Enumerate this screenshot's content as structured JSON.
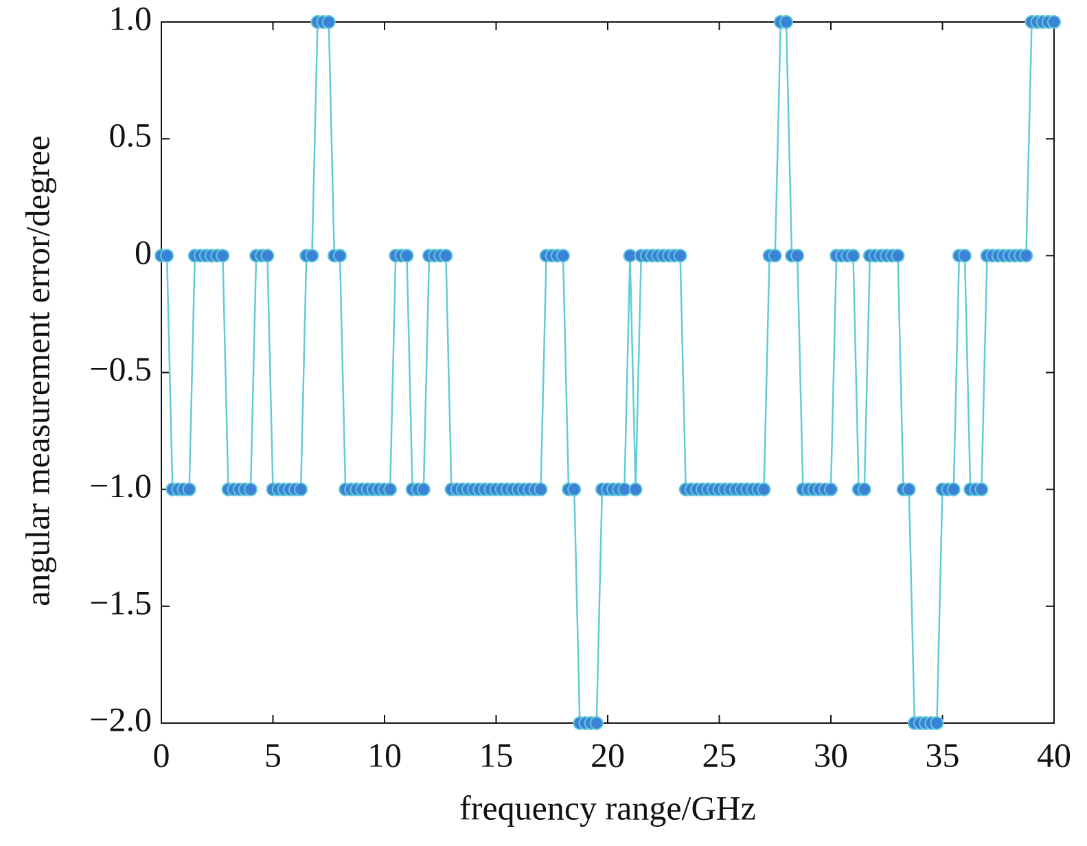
{
  "chart_data": {
    "type": "line",
    "x_label": "frequency range/GHz",
    "y_label": "angular measurement error/degree",
    "x": [
      0,
      0.25,
      0.5,
      0.75,
      1,
      1.25,
      1.5,
      1.75,
      2,
      2.25,
      2.5,
      2.75,
      3,
      3.25,
      3.5,
      3.75,
      4,
      4.25,
      4.5,
      4.75,
      5,
      5.25,
      5.5,
      5.75,
      6,
      6.25,
      6.5,
      6.75,
      7,
      7.25,
      7.5,
      7.75,
      8,
      8.25,
      8.5,
      8.75,
      9,
      9.25,
      9.5,
      9.75,
      10,
      10.25,
      10.5,
      10.75,
      11,
      11.25,
      11.5,
      11.75,
      12,
      12.25,
      12.5,
      12.75,
      13,
      13.25,
      13.5,
      13.75,
      14,
      14.25,
      14.5,
      14.75,
      15,
      15.25,
      15.5,
      15.75,
      16,
      16.25,
      16.5,
      16.75,
      17,
      17.25,
      17.5,
      17.75,
      18,
      18.25,
      18.5,
      18.75,
      19,
      19.25,
      19.5,
      19.75,
      20,
      20.25,
      20.5,
      20.75,
      21,
      21.25,
      21.5,
      21.75,
      22,
      22.25,
      22.5,
      22.75,
      23,
      23.25,
      23.5,
      23.75,
      24,
      24.25,
      24.5,
      24.75,
      25,
      25.25,
      25.5,
      25.75,
      26,
      26.25,
      26.5,
      26.75,
      27,
      27.25,
      27.5,
      27.75,
      28,
      28.25,
      28.5,
      28.75,
      29,
      29.25,
      29.5,
      29.75,
      30,
      30.25,
      30.5,
      30.75,
      31,
      31.25,
      31.5,
      31.75,
      32,
      32.25,
      32.5,
      32.75,
      33,
      33.25,
      33.5,
      33.75,
      34,
      34.25,
      34.5,
      34.75,
      35,
      35.25,
      35.5,
      35.75,
      36,
      36.25,
      36.5,
      36.75,
      37,
      37.25,
      37.5,
      37.75,
      38,
      38.25,
      38.5,
      38.75,
      39,
      39.25,
      39.5,
      39.75,
      40
    ],
    "values": [
      0,
      0,
      -1,
      -1,
      -1,
      -1,
      0,
      0,
      0,
      0,
      0,
      0,
      -1,
      -1,
      -1,
      -1,
      -1,
      0,
      0,
      0,
      -1,
      -1,
      -1,
      -1,
      -1,
      -1,
      0,
      0,
      1,
      1,
      1,
      0,
      0,
      -1,
      -1,
      -1,
      -1,
      -1,
      -1,
      -1,
      -1,
      -1,
      0,
      0,
      0,
      -1,
      -1,
      -1,
      0,
      0,
      0,
      0,
      -1,
      -1,
      -1,
      -1,
      -1,
      -1,
      -1,
      -1,
      -1,
      -1,
      -1,
      -1,
      -1,
      -1,
      -1,
      -1,
      -1,
      0,
      0,
      0,
      0,
      -1,
      -1,
      -2,
      -2,
      -2,
      -2,
      -1,
      -1,
      -1,
      -1,
      -1,
      0,
      -1,
      0,
      0,
      0,
      0,
      0,
      0,
      0,
      0,
      -1,
      -1,
      -1,
      -1,
      -1,
      -1,
      -1,
      -1,
      -1,
      -1,
      -1,
      -1,
      -1,
      -1,
      -1,
      0,
      0,
      1,
      1,
      0,
      0,
      -1,
      -1,
      -1,
      -1,
      -1,
      -1,
      0,
      0,
      0,
      0,
      -1,
      -1,
      0,
      0,
      0,
      0,
      0,
      0,
      -1,
      -1,
      -2,
      -2,
      -2,
      -2,
      -2,
      -1,
      -1,
      -1,
      0,
      0,
      -1,
      -1,
      -1,
      0,
      0,
      0,
      0,
      0,
      0,
      0,
      0,
      1,
      1,
      1,
      1,
      1
    ],
    "color": "#62cbd8",
    "marker_color": "#3b82d6",
    "xlim": [
      0,
      40
    ],
    "xticks": [
      0,
      5,
      10,
      15,
      20,
      25,
      30,
      35,
      40
    ],
    "ylim": [
      -2,
      1
    ],
    "yticks": [
      {
        "value": -2,
        "label": "−2.0"
      },
      {
        "value": -1.5,
        "label": "−1.5"
      },
      {
        "value": -1,
        "label": "−1.0"
      },
      {
        "value": -0.5,
        "label": "−0.5"
      },
      0,
      {
        "value": 0.5,
        "label": "0.5"
      },
      {
        "value": 1,
        "label": "1.0"
      }
    ]
  }
}
